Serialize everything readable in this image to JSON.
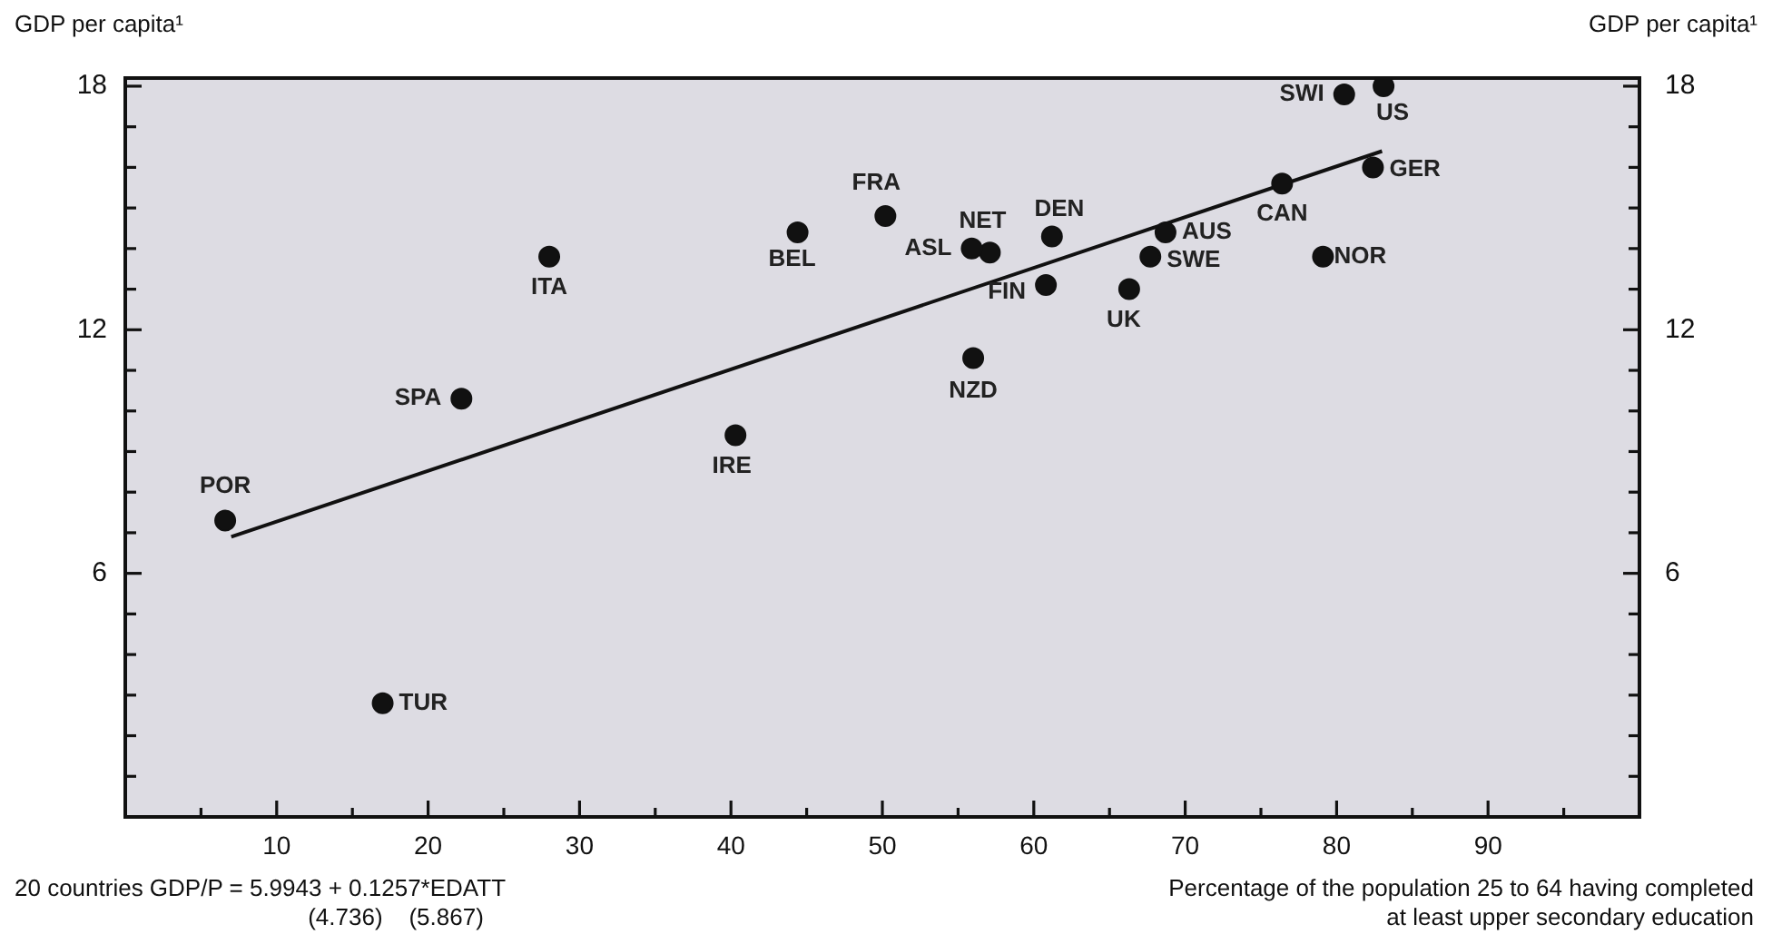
{
  "chart_data": {
    "type": "scatter",
    "ylabel": "GDP per capita¹",
    "y2label": "GDP per capita¹",
    "xlabel": "Percentage of the population 25 to 64 having completed\nat least upper secondary education",
    "annotations": [
      "20 countries GDP/P = 5.9943 + 0.1257*EDATT",
      "(4.736)    (5.867)",
      {
        "text": "SWI",
        "x": 80.5,
        "y": 17.8
      },
      {
        "text": "US",
        "x": 83.1,
        "y": 18.0
      },
      {
        "text": "GER",
        "x": 82.4,
        "y": 16.0
      },
      {
        "text": "CAN",
        "x": 76.4,
        "y": 15.6
      },
      {
        "text": "NOR",
        "x": 79.1,
        "y": 13.8
      },
      {
        "text": "AUS",
        "x": 68.7,
        "y": 14.4
      },
      {
        "text": "SWE",
        "x": 67.7,
        "y": 13.8
      },
      {
        "text": "DEN",
        "x": 61.2,
        "y": 14.3
      },
      {
        "text": "NET",
        "x": 57.1,
        "y": 13.9
      },
      {
        "text": "ASL",
        "x": 55.9,
        "y": 14.0
      },
      {
        "text": "FIN",
        "x": 60.8,
        "y": 13.1
      },
      {
        "text": "UK",
        "x": 66.3,
        "y": 13.0
      },
      {
        "text": "NZD",
        "x": 56.0,
        "y": 11.3
      },
      {
        "text": "FRA",
        "x": 50.2,
        "y": 14.8
      },
      {
        "text": "BEL",
        "x": 44.4,
        "y": 14.4
      },
      {
        "text": "ITA",
        "x": 28.0,
        "y": 13.8
      },
      {
        "text": "SPA",
        "x": 22.2,
        "y": 10.3
      },
      {
        "text": "IRE",
        "x": 40.3,
        "y": 9.4
      },
      {
        "text": "POR",
        "x": 6.6,
        "y": 7.3
      },
      {
        "text": "TUR",
        "x": 17.0,
        "y": 2.8
      }
    ],
    "series": [
      {
        "type": "scatter",
        "color": "#111111",
        "x": [
          80.5,
          83.1,
          82.4,
          76.4,
          79.1,
          68.7,
          67.7,
          61.2,
          57.1,
          55.9,
          60.8,
          66.3,
          56.0,
          50.2,
          44.4,
          28.0,
          22.2,
          40.3,
          6.6,
          17.0
        ],
        "values": [
          17.8,
          18.0,
          16.0,
          15.6,
          13.8,
          14.4,
          13.8,
          14.3,
          13.9,
          14.0,
          13.1,
          13.0,
          11.3,
          14.8,
          14.4,
          13.8,
          10.3,
          9.4,
          7.3,
          2.8
        ]
      },
      {
        "type": "line",
        "color": "#111111",
        "marker": "none",
        "x": [
          7,
          83
        ],
        "values": [
          6.9,
          16.4
        ]
      }
    ],
    "marker": "circle",
    "xlim": [
      0,
      100
    ],
    "xticks": [
      {
        "value": 5,
        "label": null
      },
      10,
      {
        "value": 15,
        "label": null
      },
      20,
      {
        "value": 25,
        "label": null
      },
      30,
      {
        "value": 35,
        "label": null
      },
      40,
      {
        "value": 45,
        "label": null
      },
      50,
      {
        "value": 55,
        "label": null
      },
      60,
      {
        "value": 65,
        "label": null
      },
      70,
      {
        "value": 75,
        "label": null
      },
      80,
      {
        "value": 85,
        "label": null
      },
      90,
      {
        "value": 95,
        "label": null
      }
    ],
    "ylim": [
      0,
      18.2
    ],
    "yticks": [
      {
        "value": 1,
        "label": null
      },
      {
        "value": 2,
        "label": null
      },
      {
        "value": 3,
        "label": null
      },
      {
        "value": 4,
        "label": null
      },
      {
        "value": 5,
        "label": null
      },
      6,
      {
        "value": 7,
        "label": null
      },
      {
        "value": 8,
        "label": null
      },
      {
        "value": 9,
        "label": null
      },
      {
        "value": 10,
        "label": null
      },
      {
        "value": 11,
        "label": null
      },
      12,
      {
        "value": 13,
        "label": null
      },
      {
        "value": 14,
        "label": null
      },
      {
        "value": 15,
        "label": null
      },
      {
        "value": 16,
        "label": null
      },
      {
        "value": 17,
        "label": null
      },
      18
    ],
    "y2lim": [
      0,
      18.2
    ],
    "y2ticks": [
      {
        "value": 1,
        "label": null
      },
      {
        "value": 2,
        "label": null
      },
      {
        "value": 3,
        "label": null
      },
      {
        "value": 4,
        "label": null
      },
      {
        "value": 5,
        "label": null
      },
      6,
      {
        "value": 7,
        "label": null
      },
      {
        "value": 8,
        "label": null
      },
      {
        "value": 9,
        "label": null
      },
      {
        "value": 10,
        "label": null
      },
      {
        "value": 11,
        "label": null
      },
      12,
      {
        "value": 13,
        "label": null
      },
      {
        "value": 14,
        "label": null
      },
      {
        "value": 15,
        "label": null
      },
      {
        "value": 16,
        "label": null
      },
      {
        "value": 17,
        "label": null
      },
      18
    ],
    "grid": false,
    "legend": false
  }
}
